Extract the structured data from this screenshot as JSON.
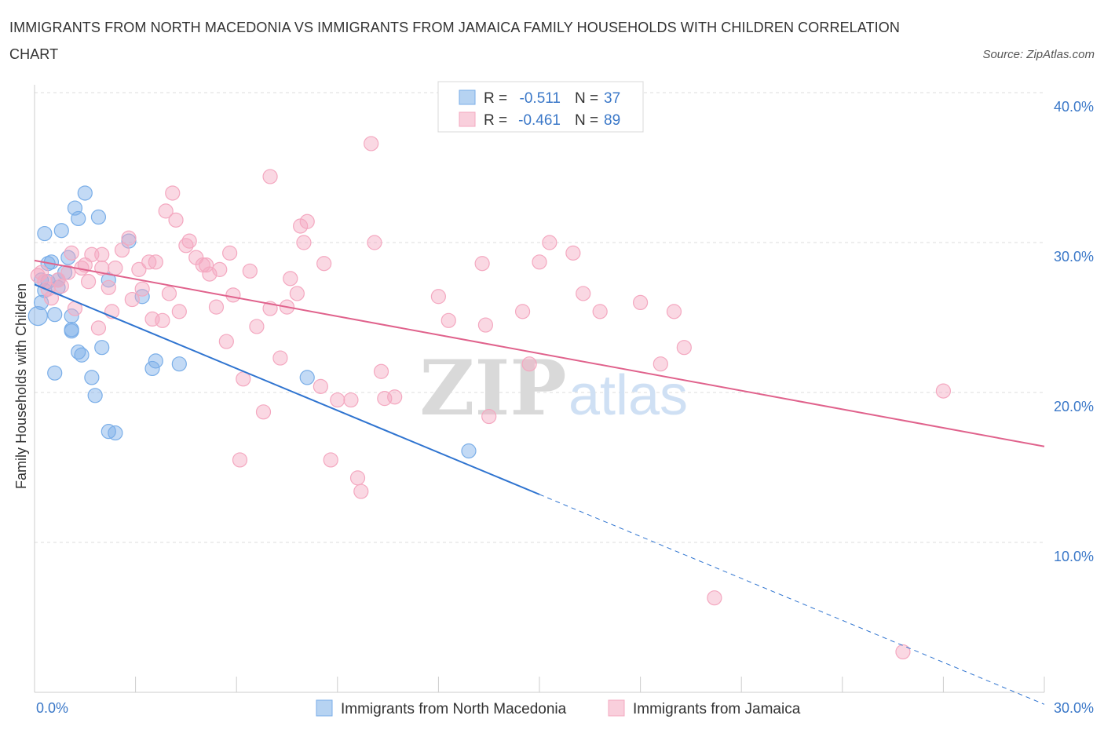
{
  "chart_data": {
    "type": "scatter",
    "title": "IMMIGRANTS FROM NORTH MACEDONIA VS IMMIGRANTS FROM JAMAICA FAMILY HOUSEHOLDS WITH CHILDREN CORRELATION CHART",
    "source": "Source: ZipAtlas.com",
    "xlabel": "",
    "ylabel": "Family Households with Children",
    "xlim": [
      0,
      30
    ],
    "ylim": [
      0,
      40
    ],
    "x_tick_labels": [
      "0.0%",
      "30.0%"
    ],
    "y_tick_labels": [
      "10.0%",
      "20.0%",
      "30.0%",
      "40.0%"
    ],
    "y_ticks": [
      10,
      20,
      30,
      40
    ],
    "grid": true,
    "watermark": "ZIPatlas",
    "legend": {
      "position": "top-center",
      "rows": [
        {
          "r_label": "R =",
          "r_value": "-0.511",
          "n_label": "N =",
          "n_value": "37"
        },
        {
          "r_label": "R =",
          "r_value": "-0.461",
          "n_label": "N =",
          "n_value": "89"
        }
      ]
    },
    "series": [
      {
        "name": "Immigrants from North Macedonia",
        "color": "#7aaee8",
        "line_color": "#2f74d0",
        "trend": {
          "x0": 0,
          "y0": 27.2,
          "x1": 15.0,
          "y1": 13.2,
          "dash_to_x": 30.0,
          "dash_to_y": -0.8
        },
        "points": [
          [
            0.1,
            25.1
          ],
          [
            0.2,
            27.5
          ],
          [
            0.2,
            26.0
          ],
          [
            0.3,
            26.8
          ],
          [
            0.3,
            30.6
          ],
          [
            0.4,
            28.6
          ],
          [
            0.5,
            28.7
          ],
          [
            0.6,
            21.3
          ],
          [
            0.6,
            25.2
          ],
          [
            0.7,
            27.5
          ],
          [
            0.7,
            27.0
          ],
          [
            0.8,
            30.8
          ],
          [
            0.9,
            28.0
          ],
          [
            1.0,
            29.0
          ],
          [
            1.1,
            24.2
          ],
          [
            1.1,
            24.1
          ],
          [
            1.1,
            25.1
          ],
          [
            1.2,
            32.3
          ],
          [
            1.3,
            31.6
          ],
          [
            1.3,
            22.7
          ],
          [
            1.4,
            22.5
          ],
          [
            1.5,
            33.3
          ],
          [
            1.7,
            21.0
          ],
          [
            1.8,
            19.8
          ],
          [
            1.9,
            31.7
          ],
          [
            2.0,
            23.0
          ],
          [
            2.2,
            27.5
          ],
          [
            2.2,
            17.4
          ],
          [
            2.4,
            17.3
          ],
          [
            2.8,
            30.1
          ],
          [
            3.2,
            26.4
          ],
          [
            3.5,
            21.6
          ],
          [
            3.6,
            22.1
          ],
          [
            4.3,
            21.9
          ],
          [
            8.1,
            21.0
          ],
          [
            12.9,
            16.1
          ],
          [
            0.4,
            27.4
          ]
        ]
      },
      {
        "name": "Immigrants from Jamaica",
        "color": "#f4a8c0",
        "line_color": "#e0628c",
        "trend": {
          "x0": 0,
          "y0": 28.8,
          "x1": 30.0,
          "y1": 16.4
        },
        "points": [
          [
            0.1,
            27.8
          ],
          [
            0.2,
            28.0
          ],
          [
            0.3,
            27.4
          ],
          [
            0.4,
            26.9
          ],
          [
            0.5,
            26.3
          ],
          [
            0.7,
            27.5
          ],
          [
            0.8,
            27.1
          ],
          [
            1.0,
            28.0
          ],
          [
            1.1,
            29.3
          ],
          [
            1.2,
            25.6
          ],
          [
            1.4,
            28.3
          ],
          [
            1.5,
            28.5
          ],
          [
            1.6,
            27.4
          ],
          [
            1.7,
            29.2
          ],
          [
            1.9,
            24.3
          ],
          [
            2.0,
            28.3
          ],
          [
            2.0,
            29.2
          ],
          [
            2.2,
            27.0
          ],
          [
            2.3,
            25.4
          ],
          [
            2.4,
            28.3
          ],
          [
            2.6,
            29.5
          ],
          [
            2.8,
            30.3
          ],
          [
            2.9,
            26.2
          ],
          [
            3.1,
            28.2
          ],
          [
            3.2,
            26.9
          ],
          [
            3.4,
            28.7
          ],
          [
            3.5,
            24.9
          ],
          [
            3.6,
            28.7
          ],
          [
            3.8,
            24.8
          ],
          [
            3.9,
            32.1
          ],
          [
            4.0,
            26.6
          ],
          [
            4.1,
            33.3
          ],
          [
            4.2,
            31.5
          ],
          [
            4.3,
            25.4
          ],
          [
            4.5,
            29.8
          ],
          [
            4.6,
            30.1
          ],
          [
            4.8,
            29.0
          ],
          [
            5.0,
            28.5
          ],
          [
            5.1,
            28.5
          ],
          [
            5.2,
            27.9
          ],
          [
            5.4,
            25.7
          ],
          [
            5.5,
            28.2
          ],
          [
            5.7,
            23.4
          ],
          [
            5.8,
            29.3
          ],
          [
            5.9,
            26.5
          ],
          [
            6.1,
            15.5
          ],
          [
            6.2,
            20.9
          ],
          [
            6.4,
            28.1
          ],
          [
            6.6,
            24.4
          ],
          [
            6.8,
            18.7
          ],
          [
            7.0,
            25.6
          ],
          [
            7.0,
            34.4
          ],
          [
            7.3,
            22.3
          ],
          [
            7.5,
            25.7
          ],
          [
            7.6,
            27.6
          ],
          [
            7.8,
            26.6
          ],
          [
            7.9,
            31.1
          ],
          [
            8.0,
            30.0
          ],
          [
            8.1,
            31.4
          ],
          [
            8.5,
            20.4
          ],
          [
            8.6,
            28.6
          ],
          [
            8.8,
            15.5
          ],
          [
            9.0,
            19.5
          ],
          [
            9.4,
            19.5
          ],
          [
            9.6,
            14.3
          ],
          [
            9.7,
            13.4
          ],
          [
            10.0,
            36.6
          ],
          [
            10.1,
            30.0
          ],
          [
            10.3,
            21.4
          ],
          [
            10.4,
            19.6
          ],
          [
            10.7,
            19.7
          ],
          [
            12.0,
            26.4
          ],
          [
            12.3,
            24.8
          ],
          [
            13.3,
            28.6
          ],
          [
            13.4,
            24.5
          ],
          [
            13.5,
            18.4
          ],
          [
            14.5,
            25.4
          ],
          [
            14.7,
            21.9
          ],
          [
            15.0,
            28.7
          ],
          [
            15.3,
            30.0
          ],
          [
            16.0,
            29.3
          ],
          [
            16.3,
            26.6
          ],
          [
            16.8,
            25.4
          ],
          [
            18.0,
            26.0
          ],
          [
            18.6,
            21.9
          ],
          [
            19.0,
            25.4
          ],
          [
            19.3,
            23.0
          ],
          [
            20.2,
            6.3
          ],
          [
            25.8,
            2.7
          ]
        ],
        "extra_points": [
          [
            27.0,
            20.1
          ]
        ]
      }
    ],
    "x_legend": [
      "Immigrants from North Macedonia",
      "Immigrants from Jamaica"
    ]
  }
}
